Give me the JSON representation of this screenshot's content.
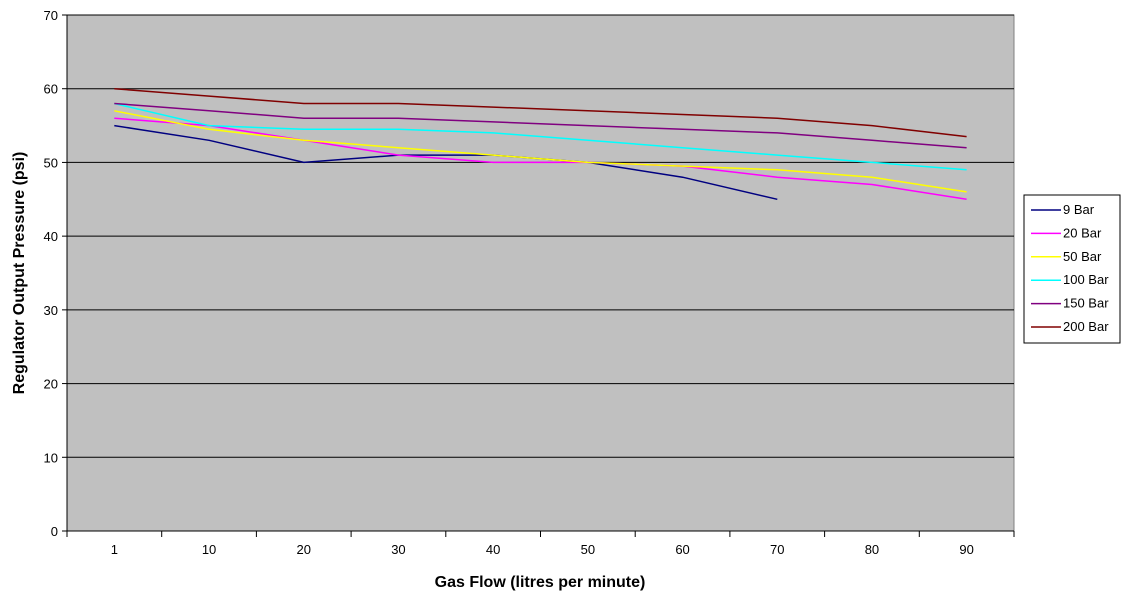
{
  "chart_data": {
    "type": "line",
    "title": "",
    "xlabel": "Gas Flow (litres per minute)",
    "ylabel": "Regulator Output Pressure (psi)",
    "categories": [
      "1",
      "10",
      "20",
      "30",
      "40",
      "50",
      "60",
      "70",
      "80",
      "90"
    ],
    "ylim": [
      0,
      70
    ],
    "yticks": [
      "0",
      "10",
      "20",
      "30",
      "40",
      "50",
      "60",
      "70"
    ],
    "grid": "horizontal",
    "plot_background": "#c0c0c0",
    "legend_position": "right",
    "series": [
      {
        "name": "9 Bar",
        "color": "#000080",
        "values": [
          55,
          53,
          50,
          51,
          51,
          50,
          48,
          45,
          null,
          null
        ]
      },
      {
        "name": "20 Bar",
        "color": "#ff00ff",
        "values": [
          56,
          55,
          53,
          51,
          50,
          50,
          49.5,
          48,
          47,
          45
        ]
      },
      {
        "name": "50 Bar",
        "color": "#ffff00",
        "values": [
          57,
          54.5,
          53,
          52,
          51,
          50,
          49.5,
          49,
          48,
          46
        ]
      },
      {
        "name": "100 Bar",
        "color": "#00ffff",
        "values": [
          58,
          55,
          54.5,
          54.5,
          54,
          53,
          52,
          51,
          50,
          49
        ]
      },
      {
        "name": "150 Bar",
        "color": "#800080",
        "values": [
          58,
          57,
          56,
          56,
          55.5,
          55,
          54.5,
          54,
          53,
          52
        ]
      },
      {
        "name": "200 Bar",
        "color": "#800000",
        "values": [
          60,
          59,
          58,
          58,
          57.5,
          57,
          56.5,
          56,
          55,
          53.5
        ]
      }
    ]
  }
}
